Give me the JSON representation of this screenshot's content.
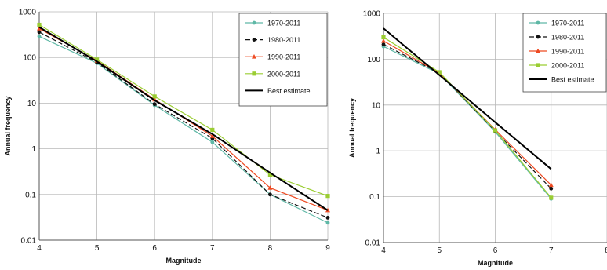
{
  "chart_data": [
    {
      "type": "line",
      "xlabel": "Magnitude",
      "ylabel": "Annual frequency",
      "y_scale": "log",
      "xlim": [
        4,
        9
      ],
      "ylim": [
        0.01,
        1000
      ],
      "x_ticks": [
        "4",
        "5",
        "6",
        "7",
        "8",
        "9"
      ],
      "y_ticks": [
        "0.01",
        "0.1",
        "1",
        "10",
        "100",
        "1000"
      ],
      "grid": true,
      "legend": "top-right",
      "x": [
        4,
        5,
        6,
        7,
        8,
        9
      ],
      "series": [
        {
          "name": "1970-2011",
          "color": "#5fb8a6",
          "marker": "circle",
          "dash": "",
          "values": [
            290,
            75,
            9,
            1.4,
            0.1,
            0.024
          ]
        },
        {
          "name": "1980-2011",
          "color": "#111111",
          "marker": "circle",
          "dash": "6,3",
          "values": [
            360,
            78,
            9.5,
            1.7,
            0.1,
            0.031
          ]
        },
        {
          "name": "1990-2011",
          "color": "#ee4a22",
          "marker": "triangle",
          "dash": "",
          "values": [
            430,
            85,
            12,
            1.9,
            0.14,
            0.045
          ]
        },
        {
          "name": "2000-2011",
          "color": "#9acd32",
          "marker": "square",
          "dash": "",
          "values": [
            520,
            90,
            14,
            2.6,
            0.27,
            0.093
          ]
        },
        {
          "name": "Best estimate",
          "color": "#000000",
          "marker": "none",
          "dash": "",
          "width": 2,
          "values": [
            460,
            82,
            11.5,
            2.1,
            0.3,
            0.045
          ]
        }
      ]
    },
    {
      "type": "line",
      "xlabel": "Magnitude",
      "ylabel": "Annual frequency",
      "y_scale": "log",
      "xlim": [
        4,
        8
      ],
      "ylim": [
        0.01,
        1000
      ],
      "x_ticks": [
        "4",
        "5",
        "6",
        "7",
        "8"
      ],
      "y_ticks": [
        "0.01",
        "0.1",
        "1",
        "10",
        "100",
        "1000"
      ],
      "grid": true,
      "legend": "top-right",
      "x": [
        4,
        5,
        6,
        7
      ],
      "series": [
        {
          "name": "1970-2011",
          "color": "#5fb8a6",
          "marker": "circle",
          "dash": "",
          "values": [
            190,
            48,
            2.6,
            0.09
          ]
        },
        {
          "name": "1980-2011",
          "color": "#111111",
          "marker": "circle",
          "dash": "6,3",
          "values": [
            210,
            50,
            2.7,
            0.15
          ]
        },
        {
          "name": "1990-2011",
          "color": "#ee4a22",
          "marker": "triangle",
          "dash": "",
          "values": [
            250,
            50,
            2.9,
            0.18
          ]
        },
        {
          "name": "2000-2011",
          "color": "#9acd32",
          "marker": "square",
          "dash": "",
          "values": [
            300,
            52,
            2.8,
            0.095
          ]
        },
        {
          "name": "Best estimate",
          "color": "#000000",
          "marker": "none",
          "dash": "",
          "width": 2,
          "values": [
            470,
            45,
            4.2,
            0.4
          ]
        }
      ]
    }
  ]
}
